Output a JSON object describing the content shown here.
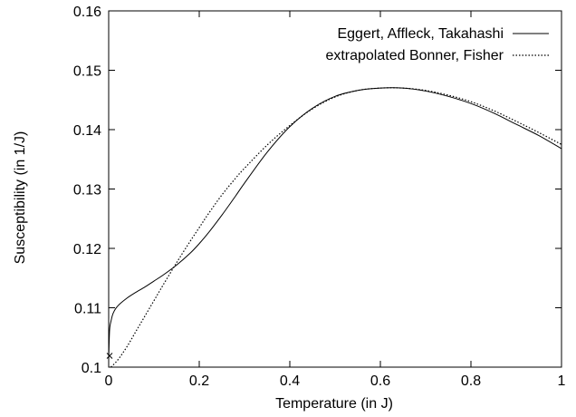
{
  "chart_data": {
    "type": "line",
    "xlabel": "Temperature (in J)",
    "ylabel": "Susceptibility (in 1/J)",
    "xlim": [
      0,
      1
    ],
    "ylim": [
      0.1,
      0.16
    ],
    "xticks": [
      0,
      0.2,
      0.4,
      0.6,
      0.8,
      1
    ],
    "xtick_labels": [
      "0",
      "0.2",
      "0.4",
      "0.6",
      "0.8",
      "1"
    ],
    "yticks": [
      0.1,
      0.11,
      0.12,
      0.13,
      0.14,
      0.15,
      0.16
    ],
    "ytick_labels": [
      "0.1",
      "0.11",
      "0.12",
      "0.13",
      "0.14",
      "0.15",
      "0.16"
    ],
    "grid": false,
    "legend_position": "top-right",
    "series": [
      {
        "name": "Eggert, Affleck, Takahashi",
        "style": "solid",
        "x": [
          0,
          0.002,
          0.005,
          0.01,
          0.02,
          0.04,
          0.06,
          0.08,
          0.1,
          0.12,
          0.15,
          0.18,
          0.2,
          0.22,
          0.25,
          0.28,
          0.3,
          0.35,
          0.4,
          0.45,
          0.5,
          0.55,
          0.6,
          0.65,
          0.7,
          0.75,
          0.8,
          0.85,
          0.9,
          0.95,
          1.0
        ],
        "y": [
          0.1013,
          0.1062,
          0.1077,
          0.1091,
          0.1103,
          0.1116,
          0.1126,
          0.1135,
          0.1145,
          0.1155,
          0.1172,
          0.1192,
          0.1208,
          0.1226,
          0.1256,
          0.1288,
          0.131,
          0.1362,
          0.1405,
          0.1436,
          0.1456,
          0.1466,
          0.147,
          0.147,
          0.1465,
          0.1456,
          0.1444,
          0.1428,
          0.1409,
          0.139,
          0.1368
        ]
      },
      {
        "name": "extrapolated Bonner, Fisher",
        "style": "dotted",
        "x": [
          0.005,
          0.02,
          0.04,
          0.06,
          0.08,
          0.1,
          0.12,
          0.15,
          0.18,
          0.2,
          0.22,
          0.25,
          0.28,
          0.3,
          0.35,
          0.4,
          0.45,
          0.5,
          0.55,
          0.6,
          0.65,
          0.7,
          0.75,
          0.8,
          0.85,
          0.9,
          0.95,
          1.0
        ],
        "y": [
          0.1,
          0.1012,
          0.1034,
          0.106,
          0.1086,
          0.1112,
          0.1138,
          0.1176,
          0.1212,
          0.1235,
          0.1258,
          0.129,
          0.1318,
          0.1335,
          0.1374,
          0.1407,
          0.1435,
          0.1455,
          0.1466,
          0.147,
          0.147,
          0.1466,
          0.1458,
          0.1447,
          0.1432,
          0.1414,
          0.1395,
          0.1375
        ]
      }
    ],
    "annotations": [
      {
        "marker": "cross",
        "x": 0.0,
        "y": 0.1013
      }
    ]
  }
}
